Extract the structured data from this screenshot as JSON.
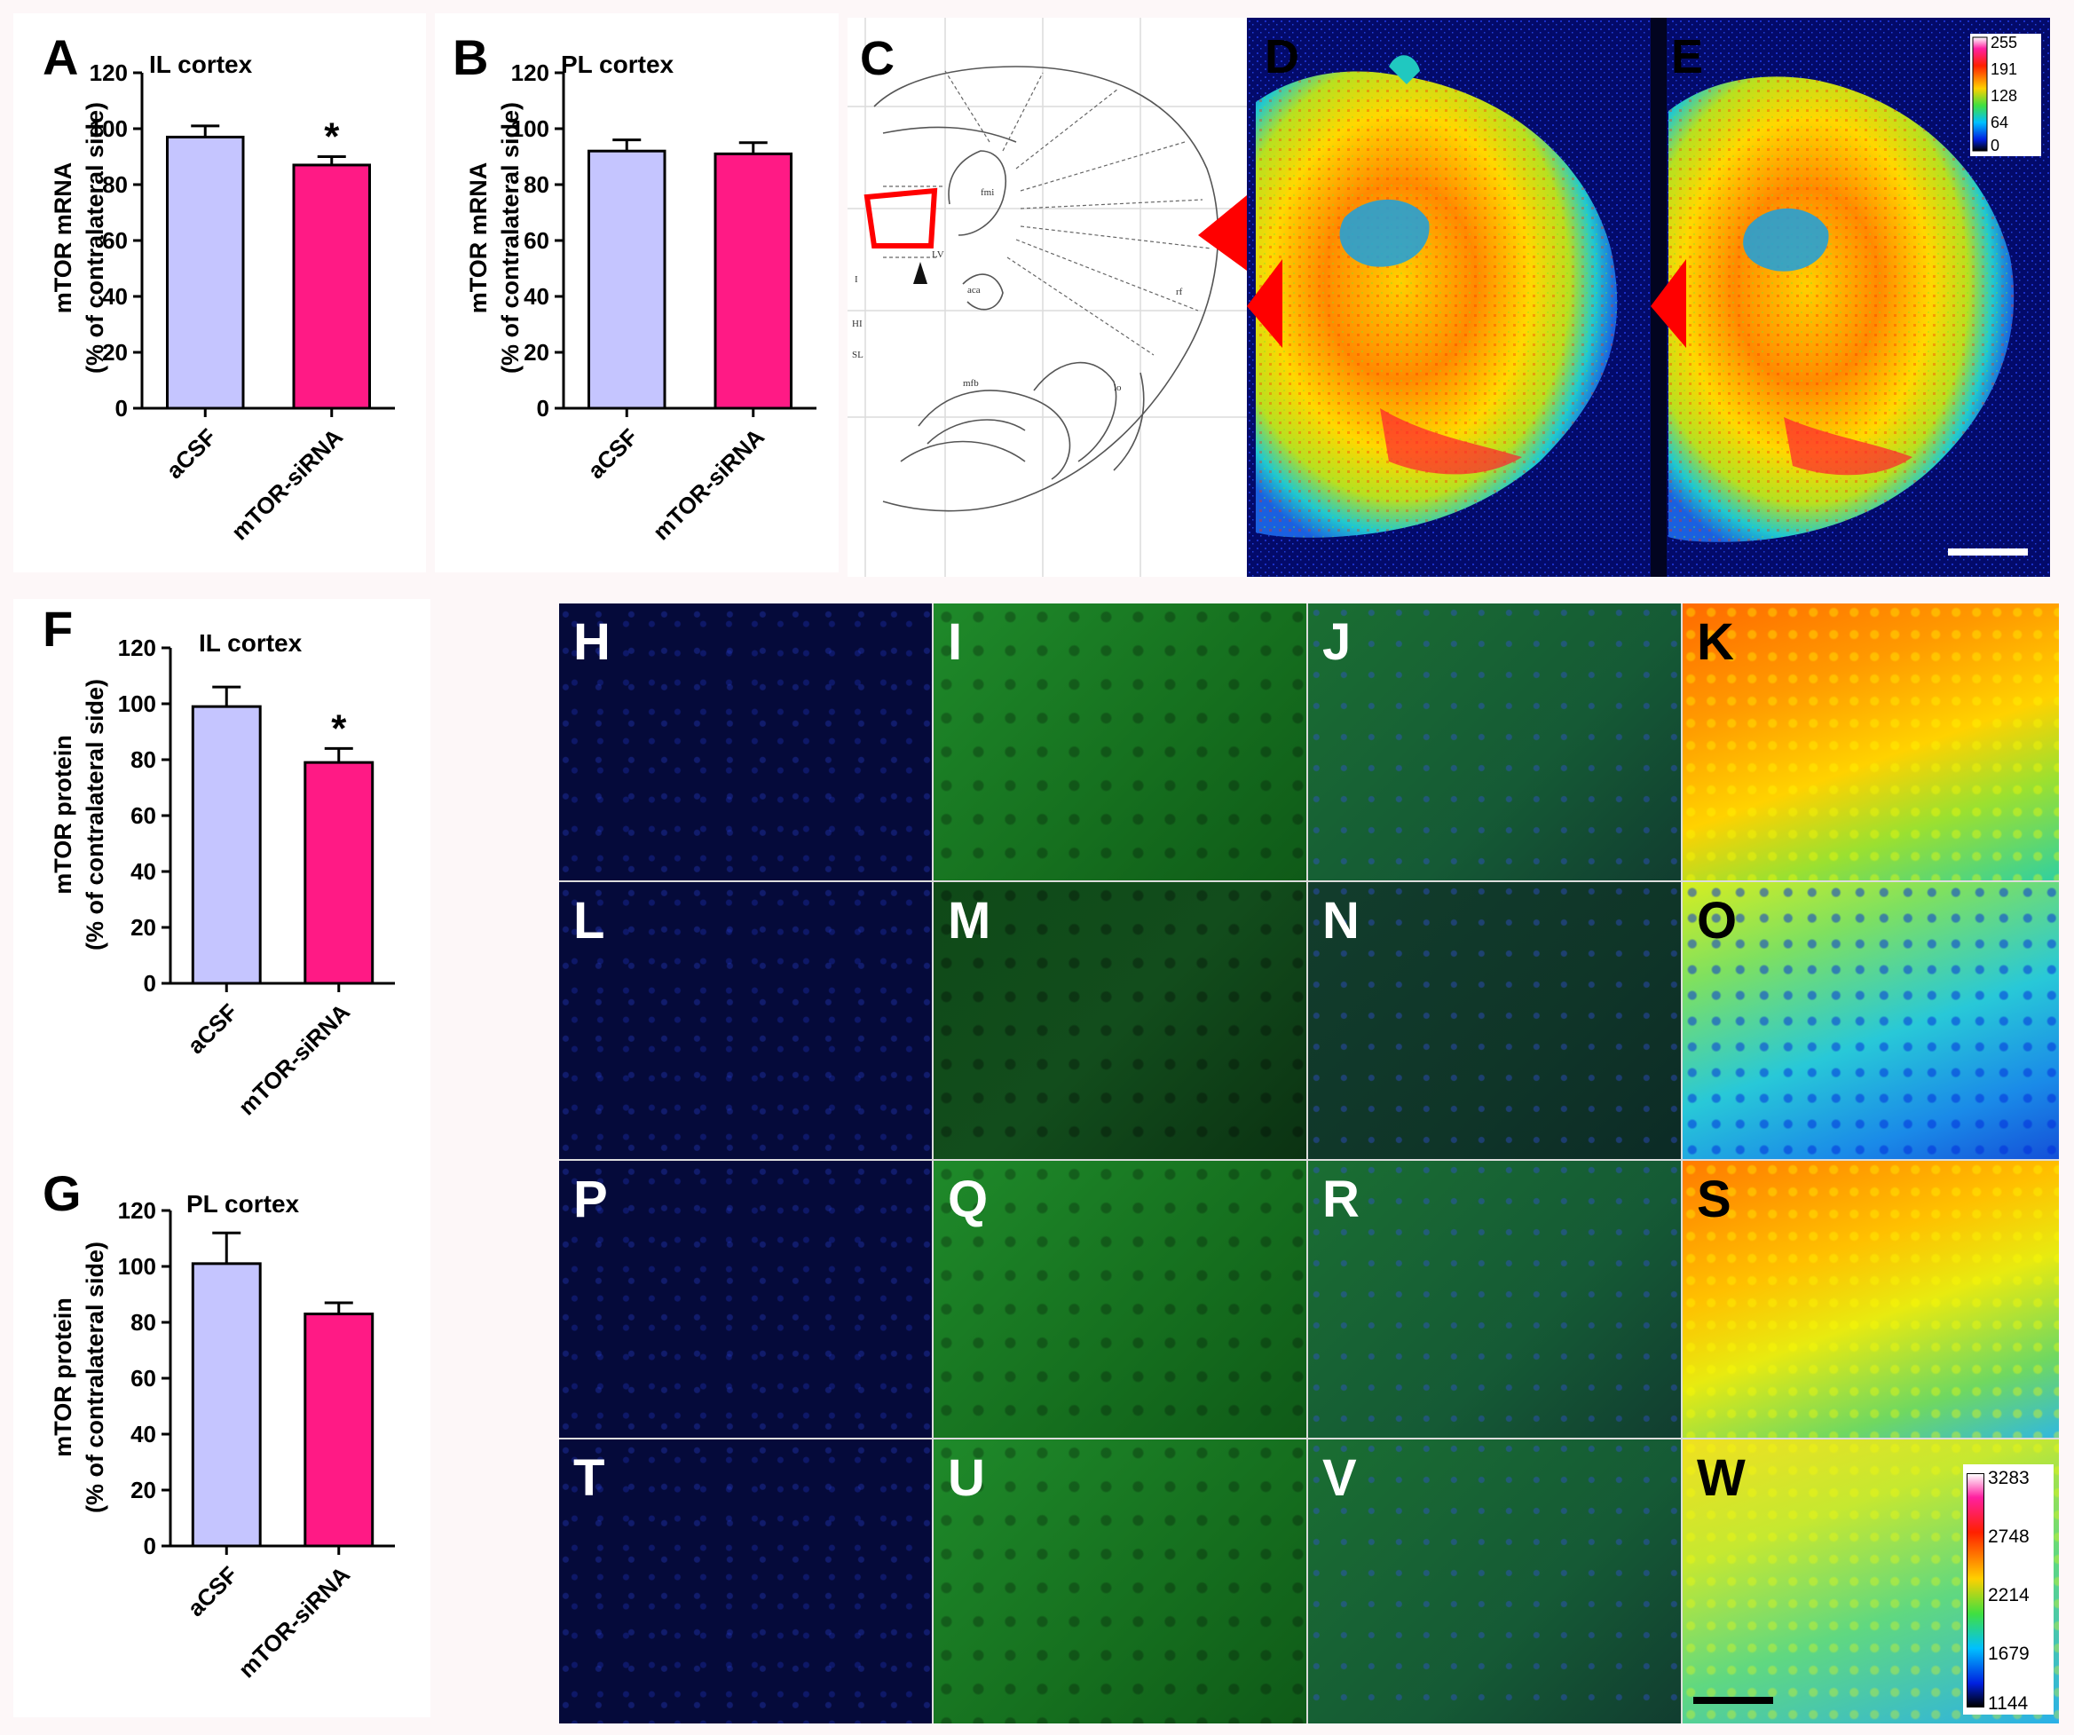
{
  "panels": {
    "A": {
      "letter": "A",
      "title": "IL cortex",
      "ylabel_line1": "mTOR mRNA",
      "ylabel_line2": "(% of contralateral side)",
      "significance": "*"
    },
    "B": {
      "letter": "B",
      "title": "PL cortex",
      "ylabel_line1": "mTOR mRNA",
      "ylabel_line2": "(% of contralateral side)",
      "significance": ""
    },
    "C": {
      "letter": "C",
      "atlas_labels": [
        "fmi",
        "LV",
        "aca",
        "mfb",
        "rf",
        "lo",
        "SL",
        "HI",
        "I"
      ]
    },
    "D": {
      "letter": "D"
    },
    "E": {
      "letter": "E",
      "scale_ticks": [
        "255",
        "191",
        "128",
        "64",
        "0"
      ]
    },
    "F": {
      "letter": "F",
      "title": "IL cortex",
      "ylabel_line1": "mTOR protein",
      "ylabel_line2": "(% of contralateral side)",
      "significance": "*"
    },
    "G": {
      "letter": "G",
      "title": "PL cortex",
      "ylabel_line1": "mTOR protein",
      "ylabel_line2": "(% of contralateral side)",
      "significance": ""
    }
  },
  "micrographs": {
    "letters": [
      "H",
      "I",
      "J",
      "K",
      "L",
      "M",
      "N",
      "O",
      "P",
      "Q",
      "R",
      "S",
      "T",
      "U",
      "V",
      "W"
    ],
    "scale_ticks": [
      "3283",
      "2748",
      "2214",
      "1679",
      "1144"
    ]
  },
  "colors": {
    "acsf_bar": "#c5c5ff",
    "sirna_bar": "#ff1a85",
    "red_marker": "#ff0000"
  },
  "chart_data": [
    {
      "id": "A",
      "type": "bar",
      "title": "IL cortex",
      "categories": [
        "aCSF",
        "mTOR-siRNA"
      ],
      "values": [
        97,
        87
      ],
      "errors": [
        4,
        3
      ],
      "ylabel": "mTOR mRNA (% of contralateral side)",
      "ylim": [
        0,
        120
      ],
      "yticks": [
        "0",
        "20",
        "40",
        "60",
        "80",
        "100",
        "120"
      ],
      "annotation": "* over mTOR-siRNA"
    },
    {
      "id": "B",
      "type": "bar",
      "title": "PL cortex",
      "categories": [
        "aCSF",
        "mTOR-siRNA"
      ],
      "values": [
        92,
        91
      ],
      "errors": [
        4,
        4
      ],
      "ylabel": "mTOR mRNA (% of contralateral side)",
      "ylim": [
        0,
        120
      ],
      "yticks": [
        "0",
        "20",
        "40",
        "60",
        "80",
        "100",
        "120"
      ]
    },
    {
      "id": "F",
      "type": "bar",
      "title": "IL cortex",
      "categories": [
        "aCSF",
        "mTOR-siRNA"
      ],
      "values": [
        99,
        79
      ],
      "errors": [
        7,
        5
      ],
      "ylabel": "mTOR protein (% of contralateral side)",
      "ylim": [
        0,
        120
      ],
      "yticks": [
        "0",
        "20",
        "40",
        "60",
        "80",
        "100",
        "120"
      ],
      "annotation": "* over mTOR-siRNA"
    },
    {
      "id": "G",
      "type": "bar",
      "title": "PL cortex",
      "categories": [
        "aCSF",
        "mTOR-siRNA"
      ],
      "values": [
        101,
        83
      ],
      "errors": [
        11,
        4
      ],
      "ylabel": "mTOR protein (% of contralateral side)",
      "ylim": [
        0,
        120
      ],
      "yticks": [
        "0",
        "20",
        "40",
        "60",
        "80",
        "100",
        "120"
      ]
    }
  ]
}
